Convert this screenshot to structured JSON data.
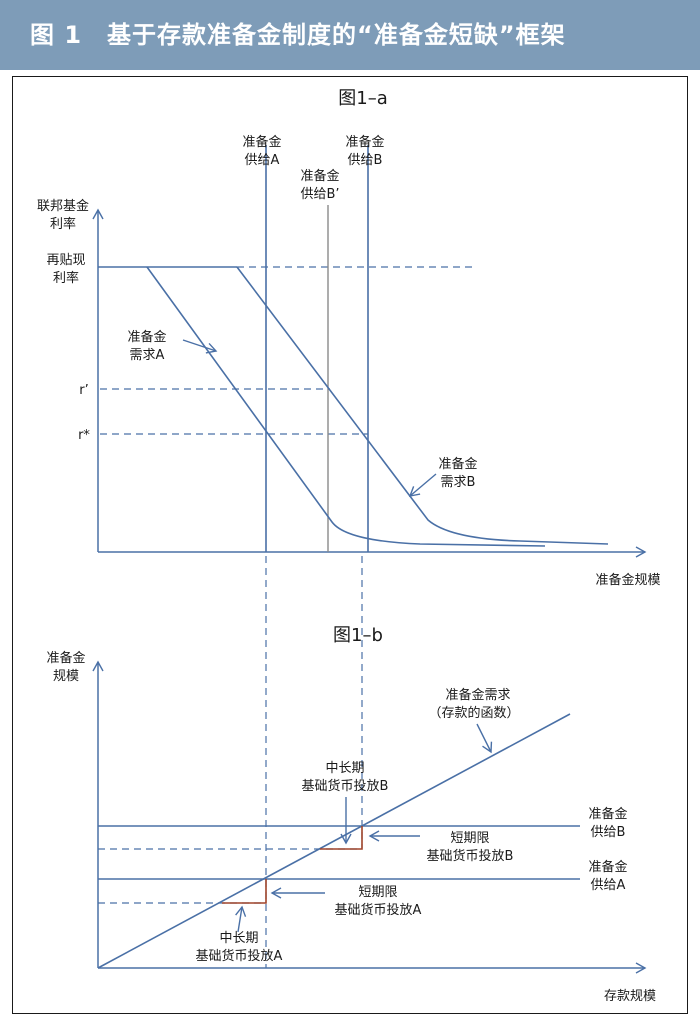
{
  "header": {
    "title": "图 1　基于存款准备金制度的“准备金短缺”框架"
  },
  "fig_a": {
    "subtitle": "图1–a",
    "y_axis_label": [
      "联邦基金",
      "利率"
    ],
    "x_axis_label": "准备金规模",
    "discount_rate_label": [
      "再贴现",
      "利率"
    ],
    "r_prime": "r’",
    "r_star": "r*",
    "supply_a": [
      "准备金",
      "供给A"
    ],
    "supply_b": [
      "准备金",
      "供给B"
    ],
    "supply_b_prime": [
      "准备金",
      "供给B’"
    ],
    "demand_a": [
      "准备金",
      "需求A"
    ],
    "demand_b": [
      "准备金",
      "需求B"
    ]
  },
  "fig_b": {
    "subtitle": "图1–b",
    "y_axis_label": [
      "准备金",
      "规模"
    ],
    "x_axis_label": "存款规模",
    "demand_label": [
      "准备金需求",
      "（存款的函数）"
    ],
    "supply_a": [
      "准备金",
      "供给A"
    ],
    "supply_b": [
      "准备金",
      "供给B"
    ],
    "mid_long_b": [
      "中长期",
      "基础货币投放B"
    ],
    "short_b": [
      "短期限",
      "基础货币投放B"
    ],
    "short_a": [
      "短期限",
      "基础货币投放A"
    ],
    "mid_long_a": [
      "中长期",
      "基础货币投放A"
    ]
  },
  "colors": {
    "header_bg": "#7e9cb8",
    "line": "#4a70a6",
    "axis": "#4a70a6",
    "step": "#a0442a",
    "text": "#1a1a1a"
  }
}
